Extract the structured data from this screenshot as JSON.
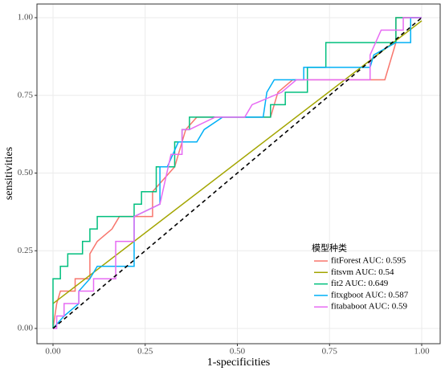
{
  "chart_data": {
    "type": "line",
    "x_label": "1-specificities",
    "y_label": "sensitivities",
    "legend_title": "模型种类",
    "xlim": [
      0,
      1
    ],
    "ylim": [
      0,
      1
    ],
    "xticks": [
      {
        "value": 0,
        "label": "0.00"
      },
      {
        "value": 0.25,
        "label": "0.25"
      },
      {
        "value": 0.5,
        "label": "0.50"
      },
      {
        "value": 0.75,
        "label": "0.75"
      },
      {
        "value": 1,
        "label": "1.00"
      }
    ],
    "yticks": [
      {
        "value": 0,
        "label": "0.00"
      },
      {
        "value": 0.25,
        "label": "0.25"
      },
      {
        "value": 0.5,
        "label": "0.50"
      },
      {
        "value": 0.75,
        "label": "0.75"
      },
      {
        "value": 1,
        "label": "1.00"
      }
    ],
    "grid": true,
    "series": [
      {
        "name": "fitForest AUC: 0.595",
        "color": "#F8766D",
        "x": [
          0,
          0.01,
          0.02,
          0.06,
          0.06,
          0.1,
          0.1,
          0.12,
          0.16,
          0.18,
          0.27,
          0.27,
          0.33,
          0.36,
          0.39,
          0.59,
          0.61,
          0.65,
          0.9,
          0.93,
          0.93,
          1
        ],
        "values": [
          0,
          0.08,
          0.12,
          0.12,
          0.16,
          0.16,
          0.24,
          0.28,
          0.32,
          0.36,
          0.36,
          0.44,
          0.52,
          0.64,
          0.68,
          0.68,
          0.76,
          0.8,
          0.8,
          0.92,
          1,
          1
        ]
      },
      {
        "name": "fitsvm AUC: 0.54",
        "color": "#A3A500",
        "x": [
          0,
          1
        ],
        "values": [
          0.08,
          0.99
        ]
      },
      {
        "name": "fit2 AUC: 0.649",
        "color": "#00BF7D",
        "x": [
          0,
          0,
          0.02,
          0.02,
          0.04,
          0.04,
          0.08,
          0.08,
          0.1,
          0.1,
          0.12,
          0.12,
          0.22,
          0.22,
          0.24,
          0.24,
          0.28,
          0.28,
          0.33,
          0.33,
          0.35,
          0.35,
          0.37,
          0.37,
          0.59,
          0.59,
          0.63,
          0.63,
          0.69,
          0.69,
          0.74,
          0.74,
          0.93,
          0.93,
          1
        ],
        "values": [
          0,
          0.16,
          0.16,
          0.2,
          0.2,
          0.24,
          0.24,
          0.28,
          0.28,
          0.32,
          0.32,
          0.36,
          0.36,
          0.4,
          0.4,
          0.44,
          0.44,
          0.52,
          0.52,
          0.6,
          0.6,
          0.64,
          0.64,
          0.68,
          0.68,
          0.72,
          0.72,
          0.76,
          0.76,
          0.84,
          0.84,
          0.92,
          0.92,
          1,
          1
        ]
      },
      {
        "name": "fitxgboot AUC: 0.587",
        "color": "#00B0F6",
        "x": [
          0,
          0.03,
          0.07,
          0.07,
          0.1,
          0.12,
          0.22,
          0.22,
          0.29,
          0.29,
          0.31,
          0.34,
          0.39,
          0.41,
          0.46,
          0.57,
          0.58,
          0.6,
          0.68,
          0.68,
          0.86,
          0.87,
          0.93,
          0.97,
          0.97,
          1
        ],
        "values": [
          0,
          0.04,
          0.08,
          0.12,
          0.16,
          0.2,
          0.2,
          0.36,
          0.4,
          0.52,
          0.52,
          0.6,
          0.6,
          0.64,
          0.68,
          0.68,
          0.76,
          0.8,
          0.8,
          0.84,
          0.84,
          0.88,
          0.92,
          0.92,
          1,
          1
        ]
      },
      {
        "name": "fitababoot AUC: 0.59",
        "color": "#E76BF3",
        "x": [
          0,
          0.01,
          0.01,
          0.03,
          0.03,
          0.07,
          0.07,
          0.11,
          0.11,
          0.17,
          0.17,
          0.22,
          0.22,
          0.29,
          0.32,
          0.35,
          0.35,
          0.37,
          0.44,
          0.52,
          0.54,
          0.62,
          0.66,
          0.86,
          0.86,
          0.89,
          0.95,
          0.95,
          1
        ],
        "values": [
          0,
          0,
          0.04,
          0.04,
          0.08,
          0.08,
          0.12,
          0.12,
          0.16,
          0.16,
          0.28,
          0.28,
          0.36,
          0.4,
          0.56,
          0.56,
          0.64,
          0.64,
          0.68,
          0.68,
          0.72,
          0.76,
          0.8,
          0.8,
          0.88,
          0.96,
          0.96,
          1,
          1
        ]
      }
    ]
  }
}
